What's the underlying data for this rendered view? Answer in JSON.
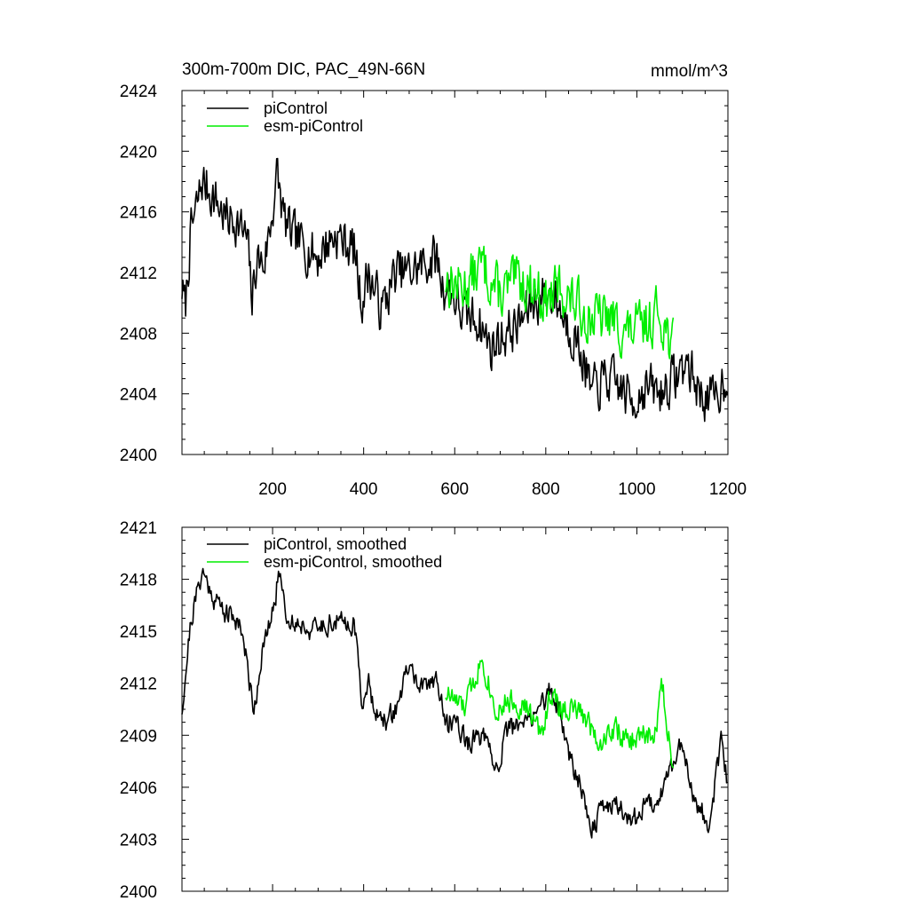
{
  "chart_data": [
    {
      "type": "line",
      "title": "300m-700m DIC, PAC_49N-66N",
      "units": "mmol/m^3",
      "xlim": [
        1,
        1200
      ],
      "ylim": [
        2400,
        2424
      ],
      "xticks": [
        200,
        400,
        600,
        800,
        1000,
        1200
      ],
      "yticks": [
        2400,
        2404,
        2408,
        2412,
        2416,
        2420,
        2424
      ],
      "show_x_tick_labels": true,
      "legend": "top-left",
      "series": [
        {
          "name": "piControl",
          "color": "#000000",
          "x_start": 1,
          "x_end": 1200,
          "keypoints": [
            [
              1,
              2411
            ],
            [
              8,
              2409.5
            ],
            [
              20,
              2414.5
            ],
            [
              35,
              2416.5
            ],
            [
              45,
              2418
            ],
            [
              60,
              2417.5
            ],
            [
              80,
              2416.5
            ],
            [
              100,
              2415.5
            ],
            [
              120,
              2415.5
            ],
            [
              145,
              2414
            ],
            [
              155,
              2410
            ],
            [
              165,
              2413
            ],
            [
              180,
              2412.5
            ],
            [
              195,
              2415
            ],
            [
              210,
              2418.5
            ],
            [
              225,
              2415.5
            ],
            [
              240,
              2414.5
            ],
            [
              260,
              2414
            ],
            [
              280,
              2413.5
            ],
            [
              300,
              2413
            ],
            [
              320,
              2414
            ],
            [
              340,
              2414.5
            ],
            [
              360,
              2414
            ],
            [
              380,
              2413.5
            ],
            [
              395,
              2410
            ],
            [
              410,
              2412
            ],
            [
              440,
              2409.5
            ],
            [
              470,
              2412
            ],
            [
              500,
              2412
            ],
            [
              530,
              2412.5
            ],
            [
              560,
              2413
            ],
            [
              575,
              2411
            ],
            [
              590,
              2411
            ],
            [
              620,
              2409
            ],
            [
              650,
              2409
            ],
            [
              680,
              2407
            ],
            [
              710,
              2408
            ],
            [
              740,
              2408.5
            ],
            [
              770,
              2410
            ],
            [
              800,
              2410.5
            ],
            [
              820,
              2410.5
            ],
            [
              840,
              2409
            ],
            [
              860,
              2408
            ],
            [
              880,
              2406.5
            ],
            [
              900,
              2404
            ],
            [
              930,
              2405
            ],
            [
              960,
              2404.5
            ],
            [
              990,
              2403.5
            ],
            [
              1020,
              2404.5
            ],
            [
              1050,
              2404
            ],
            [
              1080,
              2405
            ],
            [
              1110,
              2406
            ],
            [
              1140,
              2404
            ],
            [
              1170,
              2403.5
            ],
            [
              1200,
              2405.5
            ]
          ],
          "noise_amplitude": 2.2,
          "seed": 7
        },
        {
          "name": "esm-piControl",
          "color": "#00ee00",
          "x_start": 580,
          "x_end": 1080,
          "keypoints": [
            [
              580,
              2411.5
            ],
            [
              620,
              2411
            ],
            [
              660,
              2412.5
            ],
            [
              700,
              2410.5
            ],
            [
              740,
              2411.5
            ],
            [
              780,
              2411
            ],
            [
              800,
              2410
            ],
            [
              830,
              2411
            ],
            [
              860,
              2410
            ],
            [
              900,
              2409
            ],
            [
              940,
              2409
            ],
            [
              980,
              2408
            ],
            [
              1020,
              2408.5
            ],
            [
              1050,
              2409.5
            ],
            [
              1080,
              2407
            ]
          ],
          "noise_amplitude": 2.4,
          "seed": 13
        }
      ]
    },
    {
      "type": "line",
      "title": "",
      "xlim": [
        1,
        1200
      ],
      "ylim": [
        2400,
        2421
      ],
      "xticks": [
        200,
        400,
        600,
        800,
        1000,
        1200
      ],
      "yticks": [
        2400,
        2403,
        2406,
        2409,
        2412,
        2415,
        2418,
        2421
      ],
      "show_x_tick_labels": false,
      "legend": "top-left",
      "series": [
        {
          "name": "piControl, smoothed",
          "color": "#000000",
          "x_start": 1,
          "x_end": 1200,
          "keypoints": [
            [
              1,
              2410.5
            ],
            [
              20,
              2415.5
            ],
            [
              45,
              2418.5
            ],
            [
              70,
              2417
            ],
            [
              100,
              2416
            ],
            [
              130,
              2415.5
            ],
            [
              150,
              2412
            ],
            [
              160,
              2410.5
            ],
            [
              175,
              2413.5
            ],
            [
              200,
              2416
            ],
            [
              215,
              2418.5
            ],
            [
              235,
              2415.5
            ],
            [
              260,
              2415.5
            ],
            [
              290,
              2415
            ],
            [
              320,
              2415.5
            ],
            [
              350,
              2415.5
            ],
            [
              380,
              2415.5
            ],
            [
              395,
              2411
            ],
            [
              410,
              2412
            ],
            [
              440,
              2409.5
            ],
            [
              470,
              2410.5
            ],
            [
              500,
              2413
            ],
            [
              530,
              2411.5
            ],
            [
              560,
              2412.5
            ],
            [
              580,
              2409.5
            ],
            [
              600,
              2410
            ],
            [
              630,
              2408.5
            ],
            [
              660,
              2409
            ],
            [
              690,
              2407
            ],
            [
              720,
              2409.5
            ],
            [
              750,
              2409.5
            ],
            [
              780,
              2410.5
            ],
            [
              810,
              2411.5
            ],
            [
              830,
              2410.5
            ],
            [
              850,
              2408
            ],
            [
              880,
              2406
            ],
            [
              900,
              2403.5
            ],
            [
              930,
              2405
            ],
            [
              960,
              2405
            ],
            [
              990,
              2404
            ],
            [
              1020,
              2405
            ],
            [
              1050,
              2405.5
            ],
            [
              1080,
              2407.5
            ],
            [
              1100,
              2408.5
            ],
            [
              1130,
              2405
            ],
            [
              1160,
              2404
            ],
            [
              1185,
              2408.5
            ],
            [
              1200,
              2406
            ]
          ],
          "noise_amplitude": 0.9,
          "seed": 21
        },
        {
          "name": "esm-piControl, smoothed",
          "color": "#00ee00",
          "x_start": 580,
          "x_end": 1080,
          "keypoints": [
            [
              580,
              2411.5
            ],
            [
              620,
              2410.5
            ],
            [
              660,
              2413.5
            ],
            [
              690,
              2410.5
            ],
            [
              720,
              2411
            ],
            [
              760,
              2410.5
            ],
            [
              790,
              2409
            ],
            [
              810,
              2411.5
            ],
            [
              830,
              2410.5
            ],
            [
              860,
              2410.5
            ],
            [
              890,
              2410
            ],
            [
              920,
              2408.5
            ],
            [
              950,
              2409.5
            ],
            [
              980,
              2408.5
            ],
            [
              1010,
              2409
            ],
            [
              1040,
              2409
            ],
            [
              1055,
              2412
            ],
            [
              1080,
              2407
            ]
          ],
          "noise_amplitude": 1.0,
          "seed": 33
        }
      ]
    }
  ]
}
